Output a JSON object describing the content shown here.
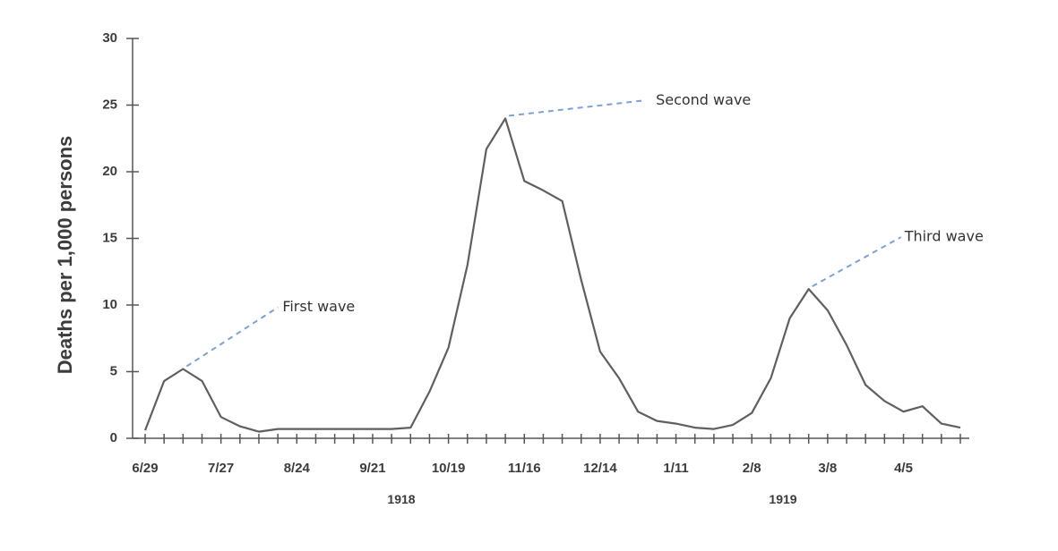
{
  "chart_data": {
    "type": "line",
    "title": "",
    "xlabel": "",
    "ylabel": "Deaths per 1,000 persons",
    "ylim": [
      0,
      30
    ],
    "yticks": [
      0,
      5,
      10,
      15,
      20,
      25,
      30
    ],
    "grid": false,
    "x_tick_labels": [
      "6/29",
      "7/27",
      "8/24",
      "9/21",
      "10/19",
      "11/16",
      "12/14",
      "1/11",
      "2/8",
      "3/8",
      "4/5"
    ],
    "year_labels": [
      "1918",
      "1919"
    ],
    "series": [
      {
        "values": [
          0.6,
          4.3,
          5.2,
          4.3,
          1.6,
          0.9,
          0.5,
          0.7,
          0.7,
          0.7,
          0.7,
          0.7,
          0.7,
          0.7,
          0.8,
          3.5,
          6.8,
          13.0,
          21.7,
          24.0,
          19.3,
          18.6,
          17.8,
          11.9,
          6.5,
          4.5,
          2.0,
          1.3,
          1.1,
          0.8,
          0.7,
          1.0,
          1.9,
          4.5,
          9.0,
          11.2,
          9.6,
          7.0,
          4.0,
          2.8,
          2.0,
          2.4,
          1.1,
          0.8
        ]
      }
    ],
    "annotations": [
      {
        "text": "First wave",
        "index": 2,
        "value": 5.2
      },
      {
        "text": "Second wave",
        "index": 19,
        "value": 24.0
      },
      {
        "text": "Third wave",
        "index": 35,
        "value": 11.2
      }
    ],
    "colors": {
      "line": "#5f5f5f",
      "axis": "#555555",
      "annotation_leader": "#7da0d8",
      "text": "#3c3c3c"
    }
  }
}
